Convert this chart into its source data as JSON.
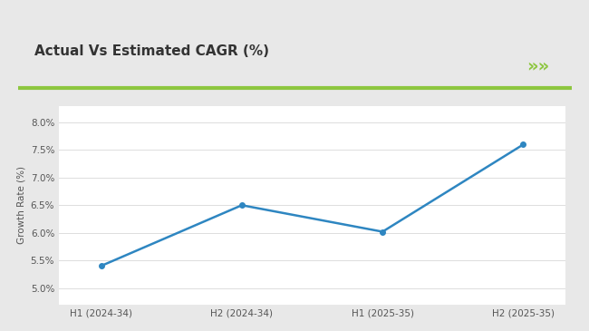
{
  "title": "Actual Vs Estimated CAGR (%)",
  "x_labels": [
    "H1 (2024-34)",
    "H2 (2024-34)",
    "H1 (2025-35)",
    "H2 (2025-35)"
  ],
  "y_values": [
    5.4,
    6.5,
    6.02,
    7.6
  ],
  "y_ticks": [
    5.0,
    5.5,
    6.0,
    6.5,
    7.0,
    7.5,
    8.0
  ],
  "y_tick_labels": [
    "5.0%",
    "5.5%",
    "6.0%",
    "6.5%",
    "7.0%",
    "7.5%",
    "8.0%"
  ],
  "ylim": [
    4.7,
    8.3
  ],
  "ylabel": "Growth Rate (%)",
  "line_color": "#2e86c1",
  "background_color": "#ffffff",
  "outer_background": "#e8e8e8",
  "title_color": "#333333",
  "title_fontsize": 11,
  "green_bar_color": "#8dc63f",
  "chevron_color": "#8dc63f"
}
